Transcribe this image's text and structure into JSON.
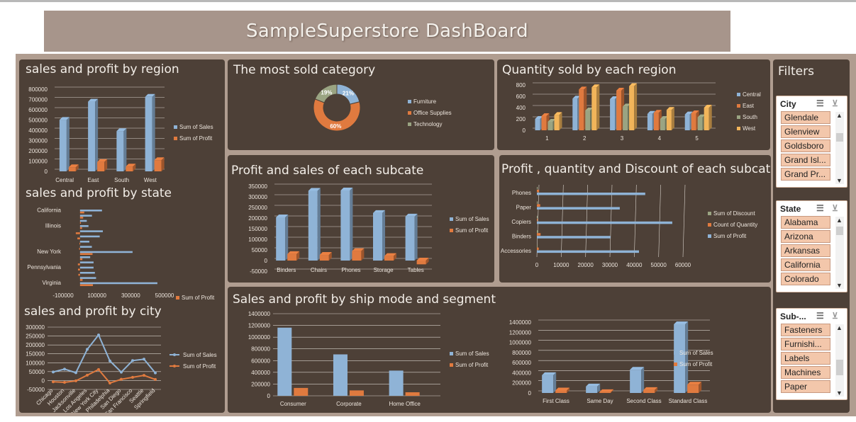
{
  "dashboard": {
    "title": "SampleSuperstore DashBoard",
    "colors": {
      "sales": "#8fb3d6",
      "profit": "#e07a3f",
      "technology": "#9aa482",
      "west": "#f1b45a",
      "panel": "#4d4037",
      "frame": "#b09d90",
      "banner": "#a7958b"
    }
  },
  "panels": {
    "region": {
      "title": "sales and profit by region"
    },
    "state": {
      "title": "sales and profit by state"
    },
    "city": {
      "title": "sales and profit by city"
    },
    "category": {
      "title": "The most sold category"
    },
    "qty_region": {
      "title": "Quantity sold by each region"
    },
    "subcate_ps": {
      "title": "Profit and sales of each subcate"
    },
    "subcate_pqd": {
      "title": "Profit , quantity and Discount of each subcate"
    },
    "shipmode": {
      "title": "Sales and profit by ship mode and segment"
    }
  },
  "filters": {
    "title": "Filters",
    "slicers": [
      {
        "header": "City",
        "items": [
          "Glendale",
          "Glenview",
          "Goldsboro",
          "Grand Isl...",
          "Grand Pr..."
        ]
      },
      {
        "header": "State",
        "items": [
          "Alabama",
          "Arizona",
          "Arkansas",
          "California",
          "Colorado"
        ]
      },
      {
        "header": "Sub-...",
        "items": [
          "Fasteners",
          "Furnishi...",
          "Labels",
          "Machines",
          "Paper"
        ]
      }
    ]
  },
  "chart_data": [
    {
      "id": "region",
      "type": "bar",
      "categories": [
        "Central",
        "East",
        "South",
        "West"
      ],
      "series": [
        {
          "name": "Sum of Sales",
          "values": [
            501240,
            678781,
            391722,
            725458
          ]
        },
        {
          "name": "Sum of Profit",
          "values": [
            39706,
            91523,
            46749,
            108418
          ]
        }
      ],
      "ylim": [
        0,
        800000
      ],
      "yticks": [
        "0",
        "100000",
        "200000",
        "300000",
        "400000",
        "500000",
        "600000",
        "700000",
        "800000"
      ]
    },
    {
      "id": "state",
      "type": "bar",
      "orientation": "horizontal",
      "categories": [
        "California",
        "Illinois",
        "New York",
        "Pennsylvania",
        "Virginia"
      ],
      "series": [
        {
          "name": "Sum of Profit"
        },
        {
          "name": "Sum of Sales"
        }
      ],
      "bars": [
        {
          "sales": 457688,
          "profit": 76381
        },
        {
          "sales": 95000,
          "profit": 15000
        },
        {
          "sales": 88000,
          "profit": -10000
        },
        {
          "sales": 80000,
          "profit": -12000
        },
        {
          "sales": 80166,
          "profit": -12608
        },
        {
          "sales": 60000,
          "profit": 14000
        },
        {
          "sales": 310876,
          "profit": 74039
        },
        {
          "sales": 70000,
          "profit": -5000
        },
        {
          "sales": 55000,
          "profit": -3000
        },
        {
          "sales": 116512,
          "profit": -15560
        },
        {
          "sales": 135000,
          "profit": -25000
        },
        {
          "sales": 50000,
          "profit": 12000
        },
        {
          "sales": 40000,
          "profit": 5000
        },
        {
          "sales": 70636,
          "profit": 18598
        },
        {
          "sales": 130000,
          "profit": 25000
        }
      ],
      "label_rows": [
        14,
        11,
        6,
        3,
        0
      ],
      "xlim": [
        -100000,
        500000
      ],
      "xticks": [
        "-100000",
        "100000",
        "300000",
        "500000"
      ]
    },
    {
      "id": "city",
      "type": "line",
      "categories": [
        "Chicago",
        "Houston",
        "Jacksonville",
        "Los Angeles",
        "New York City",
        "Philadelphia",
        "San Diego",
        "San Francisco",
        "Seattle",
        "Springfield"
      ],
      "series": [
        {
          "name": "Sum of Sales",
          "values": [
            48000,
            64000,
            44000,
            175000,
            256000,
            110000,
            47000,
            112000,
            120000,
            43000
          ]
        },
        {
          "name": "Sum of Profit",
          "values": [
            -7000,
            -10000,
            -2000,
            30000,
            62000,
            -14000,
            7000,
            18000,
            29000,
            6000
          ]
        }
      ],
      "ylim": [
        -50000,
        300000
      ],
      "yticks": [
        "-50000",
        "0",
        "50000",
        "100000",
        "150000",
        "200000",
        "250000",
        "300000"
      ]
    },
    {
      "id": "category",
      "type": "pie",
      "donut": true,
      "labels": [
        "Furniture",
        "Office Supplies",
        "Technology"
      ],
      "values": [
        21,
        60,
        19
      ],
      "value_labels": [
        "21%",
        "60%",
        "19%"
      ]
    },
    {
      "id": "qty_region",
      "type": "bar",
      "categories": [
        "1",
        "2",
        "3",
        "4",
        "5"
      ],
      "series": [
        {
          "name": "Central",
          "values": [
            200,
            560,
            550,
            290,
            280
          ]
        },
        {
          "name": "East",
          "values": [
            250,
            720,
            700,
            310,
            300
          ]
        },
        {
          "name": "South",
          "values": [
            150,
            350,
            420,
            200,
            230
          ]
        },
        {
          "name": "West",
          "values": [
            270,
            760,
            780,
            360,
            400
          ]
        }
      ],
      "ylim": [
        0,
        800
      ],
      "yticks": [
        "0",
        "200",
        "400",
        "600",
        "800"
      ]
    },
    {
      "id": "subcate_ps",
      "type": "bar",
      "categories": [
        "Binders",
        "Chairs",
        "Phones",
        "Storage",
        "Tables"
      ],
      "series": [
        {
          "name": "Sum of Sales",
          "values": [
            203413,
            328449,
            330007,
            223844,
            206966
          ]
        },
        {
          "name": "Sum of Profit",
          "values": [
            30222,
            26590,
            44516,
            21279,
            -17725
          ]
        }
      ],
      "ylim": [
        -50000,
        350000
      ],
      "yticks": [
        "-50000",
        "0",
        "50000",
        "100000",
        "150000",
        "200000",
        "250000",
        "300000",
        "350000"
      ]
    },
    {
      "id": "subcate_pqd",
      "type": "bar",
      "orientation": "horizontal",
      "categories": [
        "Accessories",
        "Binders",
        "Copiers",
        "Paper",
        "Phones"
      ],
      "series": [
        {
          "name": "Sum of Discount",
          "values": [
            60,
            567,
            11,
            102,
            137
          ]
        },
        {
          "name": "Count of Quantity",
          "values": [
            775,
            1523,
            68,
            1370,
            889
          ]
        },
        {
          "name": "Sum of Profit",
          "values": [
            41937,
            30222,
            55618,
            34054,
            44516
          ]
        }
      ],
      "xlim": [
        0,
        60000
      ],
      "xticks": [
        "0",
        "10000",
        "20000",
        "30000",
        "40000",
        "50000",
        "60000"
      ]
    },
    {
      "id": "shipmode_segment",
      "type": "bar",
      "categories": [
        "Consumer",
        "Corporate",
        "Home Office"
      ],
      "series": [
        {
          "name": "Sum of Sales",
          "values": [
            1161401,
            706146,
            429653
          ]
        },
        {
          "name": "Sum of Profit",
          "values": [
            134119,
            91979,
            60299
          ]
        }
      ],
      "ylim": [
        0,
        1400000
      ],
      "yticks": [
        "0",
        "200000",
        "400000",
        "600000",
        "800000",
        "1000000",
        "1200000",
        "1400000"
      ]
    },
    {
      "id": "shipmode_class",
      "type": "bar",
      "categories": [
        "First Class",
        "Same Day",
        "Second Class",
        "Standard Class"
      ],
      "series": [
        {
          "name": "Sum of Sales",
          "values": [
            351428,
            128363,
            459194,
            1358216
          ]
        },
        {
          "name": "Sum of Profit",
          "values": [
            48970,
            15892,
            57447,
            164089
          ]
        }
      ],
      "ylim": [
        0,
        1400000
      ],
      "yticks": [
        "0",
        "200000",
        "400000",
        "600000",
        "800000",
        "1000000",
        "1200000",
        "1400000"
      ]
    }
  ]
}
